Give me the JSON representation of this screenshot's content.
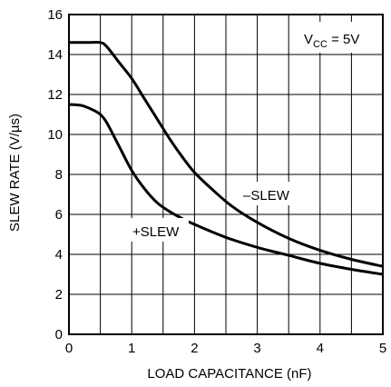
{
  "chart_data": {
    "type": "line",
    "title": "",
    "xlabel": "LOAD CAPACITANCE (nF)",
    "ylabel": "SLEW RATE (V/µs)",
    "xlim": [
      0,
      5
    ],
    "ylim": [
      0,
      16
    ],
    "xticks": [
      0,
      1,
      2,
      3,
      4,
      5
    ],
    "yticks": [
      0,
      2,
      4,
      6,
      8,
      10,
      12,
      14,
      16
    ],
    "xtick_labels": [
      "0",
      "1",
      "2",
      "3",
      "4",
      "5"
    ],
    "ytick_labels": [
      "0",
      "2",
      "4",
      "6",
      "8",
      "10",
      "12",
      "14",
      "16"
    ],
    "grid": true,
    "grid_x_step": 0.5,
    "grid_y_step": 2,
    "annotation": {
      "main": "V",
      "subscript": "CC",
      "suffix": " = 5V"
    },
    "series": [
      {
        "name": "–SLEW",
        "x": [
          0,
          0.3,
          0.5,
          0.6,
          0.8,
          1.0,
          1.2,
          1.4,
          1.6,
          1.8,
          2.0,
          2.3,
          2.6,
          3.0,
          3.5,
          4.0,
          4.5,
          5.0
        ],
        "y": [
          14.6,
          14.6,
          14.6,
          14.4,
          13.6,
          12.8,
          11.8,
          10.8,
          9.8,
          8.9,
          8.1,
          7.2,
          6.4,
          5.6,
          4.8,
          4.2,
          3.75,
          3.4
        ]
      },
      {
        "name": "+SLEW",
        "x": [
          0,
          0.2,
          0.4,
          0.5,
          0.6,
          0.8,
          1.0,
          1.2,
          1.4,
          1.6,
          1.8,
          2.0,
          2.5,
          3.0,
          3.5,
          4.0,
          4.5,
          5.0
        ],
        "y": [
          11.5,
          11.45,
          11.2,
          11.0,
          10.6,
          9.4,
          8.2,
          7.3,
          6.6,
          6.15,
          5.8,
          5.5,
          4.85,
          4.35,
          3.95,
          3.55,
          3.25,
          3.0
        ]
      }
    ]
  }
}
